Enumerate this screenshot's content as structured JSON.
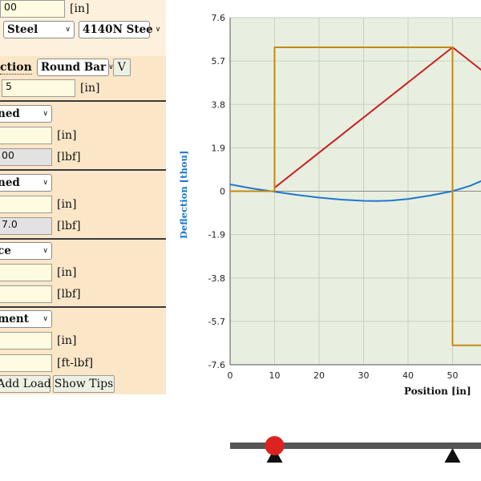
{
  "inputs": {
    "length": {
      "value": "00",
      "unit": "[in]"
    },
    "material": "Steel",
    "alloy": "4140N Stee",
    "section_label": "ction",
    "section_type": "Round Bar",
    "section_view_button": "V",
    "diameter": {
      "value": "5",
      "unit": "[in]"
    }
  },
  "loads": [
    {
      "type": "ned",
      "pos": {
        "value": "",
        "unit": "[in]"
      },
      "mag": {
        "value": "00",
        "unit": "[lbf]"
      }
    },
    {
      "type": "ned",
      "pos": {
        "value": "",
        "unit": "[in]"
      },
      "mag": {
        "value": "7.0",
        "unit": "[lbf]"
      }
    },
    {
      "type": "ce",
      "pos": {
        "value": "",
        "unit": "[in]"
      },
      "mag": {
        "value": "",
        "unit": "[lbf]"
      }
    },
    {
      "type": "ment",
      "pos": {
        "value": "",
        "unit": "[in]"
      },
      "mag": {
        "value": "",
        "unit": "[ft-lbf]"
      }
    }
  ],
  "buttons": {
    "add_load": "Add Load",
    "show_tips": "Show Tips"
  },
  "chart_data": {
    "type": "line",
    "xlabel": "Position [in]",
    "ylabel": "Deflection [thou]",
    "x_ticks": [
      "0",
      "10",
      "20",
      "30",
      "40",
      "50"
    ],
    "y_ticks": [
      "7.6",
      "5.7",
      "3.8",
      "1.9",
      "0",
      "-1.9",
      "-3.8",
      "-5.7",
      "-7.6"
    ],
    "xlim": [
      0,
      56.5
    ],
    "ylim": [
      -7.6,
      7.6
    ],
    "grid": true,
    "series": [
      {
        "color": "#1f77d0",
        "points": [
          [
            0,
            0.3
          ],
          [
            5,
            0.12
          ],
          [
            10,
            -0.02
          ],
          [
            15,
            -0.16
          ],
          [
            20,
            -0.28
          ],
          [
            25,
            -0.37
          ],
          [
            30,
            -0.42
          ],
          [
            33,
            -0.43
          ],
          [
            36,
            -0.41
          ],
          [
            40,
            -0.34
          ],
          [
            45,
            -0.19
          ],
          [
            50,
            0.0
          ],
          [
            54,
            0.24
          ],
          [
            56.5,
            0.45
          ]
        ]
      },
      {
        "color": "#cc1f1f",
        "points": [
          [
            10,
            0.15
          ],
          [
            50,
            6.3
          ],
          [
            56.5,
            5.3
          ]
        ]
      },
      {
        "color": "#c48a14",
        "points": [
          [
            0,
            0
          ],
          [
            10,
            0
          ],
          [
            10,
            6.3
          ],
          [
            50,
            6.3
          ],
          [
            50,
            -6.75
          ],
          [
            56.5,
            -6.75
          ]
        ]
      }
    ]
  },
  "beam": {
    "load_positions": [
      10
    ],
    "support_positions": [
      10,
      50
    ]
  },
  "colors": {
    "panel": "#fbe7c8",
    "plot_bg": "#e8efe0",
    "beam": "#555555",
    "load_marker": "#dd2222",
    "support": "#111111"
  }
}
